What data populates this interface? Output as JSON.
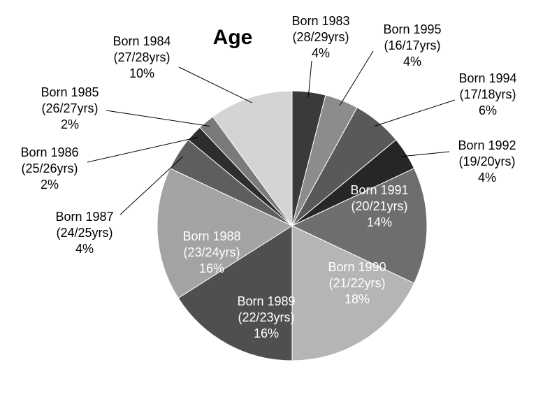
{
  "chart_data": {
    "type": "pie",
    "title": "Age",
    "slices": [
      {
        "label": "Born 1983",
        "range": "(28/29yrs)",
        "pct_label": "4%",
        "value": 4,
        "color": "#3a3a3a"
      },
      {
        "label": "Born 1995",
        "range": "(16/17yrs)",
        "pct_label": "4%",
        "value": 4,
        "color": "#8c8c8c"
      },
      {
        "label": "Born 1994",
        "range": "(17/18yrs)",
        "pct_label": "6%",
        "value": 6,
        "color": "#595959"
      },
      {
        "label": "Born 1992",
        "range": "(19/20yrs)",
        "pct_label": "4%",
        "value": 4,
        "color": "#262626"
      },
      {
        "label": "Born 1991",
        "range": "(20/21yrs)",
        "pct_label": "14%",
        "value": 14,
        "color": "#6e6e6e"
      },
      {
        "label": "Born 1990",
        "range": "(21/22yrs)",
        "pct_label": "18%",
        "value": 18,
        "color": "#b5b5b5"
      },
      {
        "label": "Born 1989",
        "range": "(22/23yrs)",
        "pct_label": "16%",
        "value": 16,
        "color": "#4f4f4f"
      },
      {
        "label": "Born 1988",
        "range": "(23/24yrs)",
        "pct_label": "16%",
        "value": 16,
        "color": "#a3a3a3"
      },
      {
        "label": "Born 1987",
        "range": "(24/25yrs)",
        "pct_label": "4%",
        "value": 4,
        "color": "#5e5e5e"
      },
      {
        "label": "Born 1986",
        "range": "(25/26yrs)",
        "pct_label": "2%",
        "value": 2,
        "color": "#2e2e2e"
      },
      {
        "label": "Born 1985",
        "range": "(26/27yrs)",
        "pct_label": "2%",
        "value": 2,
        "color": "#7a7a7a"
      },
      {
        "label": "Born 1984",
        "range": "(27/28yrs)",
        "pct_label": "10%",
        "value": 10,
        "color": "#d4d4d4"
      }
    ]
  }
}
